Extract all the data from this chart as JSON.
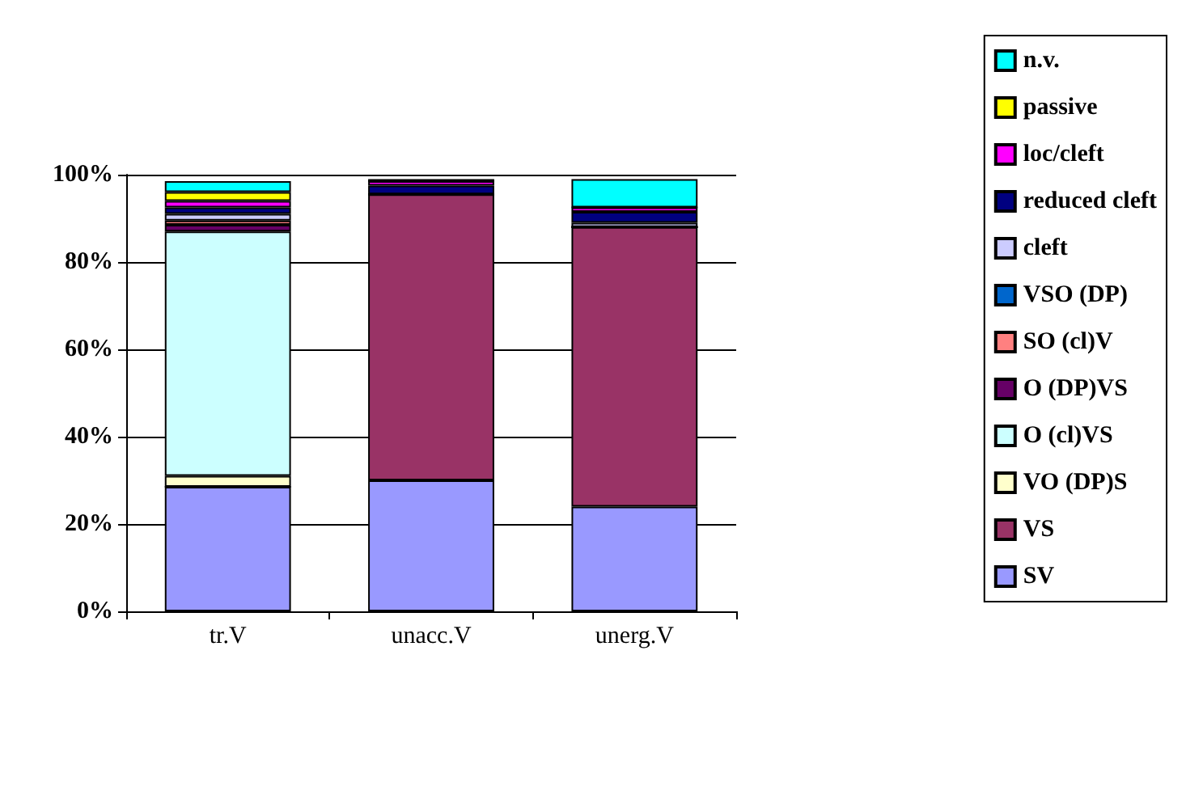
{
  "chart_data": {
    "type": "bar",
    "stacked": true,
    "categories": [
      "tr.V",
      "unacc.V",
      "unerg.V"
    ],
    "series": [
      {
        "name": "SV",
        "color": "#9999ff",
        "values": [
          28.5,
          30,
          24
        ]
      },
      {
        "name": "VS",
        "color": "#993366",
        "values": [
          0,
          65.5,
          64
        ]
      },
      {
        "name": "VO (DP)S",
        "color": "#ffffcc",
        "values": [
          2.5,
          0,
          0
        ]
      },
      {
        "name": "O (cl)VS",
        "color": "#ccffff",
        "values": [
          56,
          0,
          0
        ]
      },
      {
        "name": "O (DP)VS",
        "color": "#660066",
        "values": [
          1.5,
          0,
          0
        ]
      },
      {
        "name": "SO (cl)V",
        "color": "#ff8080",
        "values": [
          1,
          0,
          0
        ]
      },
      {
        "name": "VSO (DP)",
        "color": "#0066cc",
        "values": [
          null,
          0,
          0
        ]
      },
      {
        "name": "cleft",
        "color": "#ccccff",
        "values": [
          1.5,
          0,
          1
        ]
      },
      {
        "name": "reduced cleft",
        "color": "#000080",
        "values": [
          1.5,
          2,
          2.5
        ]
      },
      {
        "name": "loc/cleft",
        "color": "#ff00ff",
        "values": [
          1.5,
          1,
          1
        ]
      },
      {
        "name": "passive",
        "color": "#ffff00",
        "values": [
          2,
          0,
          0
        ]
      },
      {
        "name": "n.v.",
        "color": "#00ffff",
        "values": [
          2.5,
          0.5,
          6.5
        ]
      }
    ],
    "ylim": [
      0,
      100
    ],
    "yticks": [
      {
        "value": 0,
        "label": "0%"
      },
      {
        "value": 20,
        "label": "20%"
      },
      {
        "value": 40,
        "label": "40%"
      },
      {
        "value": 60,
        "label": "60%"
      },
      {
        "value": 80,
        "label": "80%"
      },
      {
        "value": 100,
        "label": "100%"
      }
    ],
    "grid": "y",
    "legend": "right"
  }
}
